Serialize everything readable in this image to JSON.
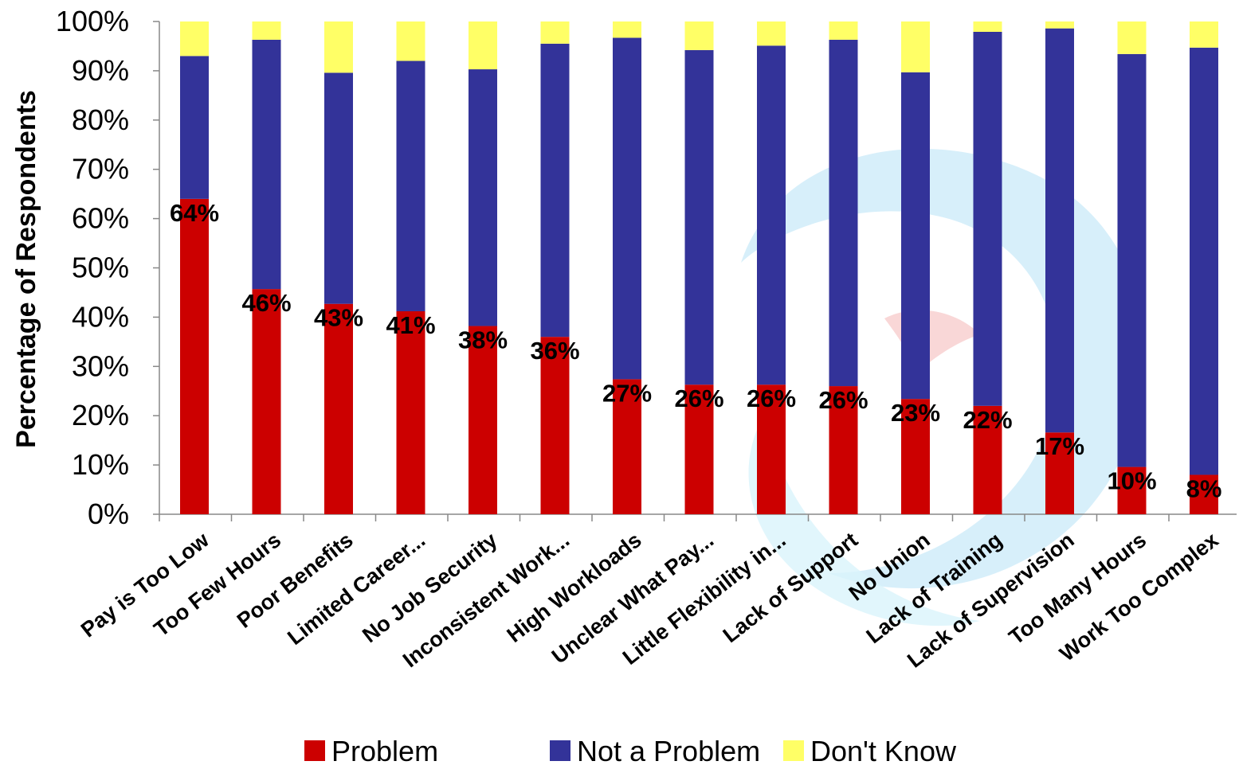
{
  "chart_data": {
    "type": "bar",
    "stacked": true,
    "ylabel": "Percentage of Respondents",
    "xlabel": "",
    "ylim": [
      0,
      100
    ],
    "y_ticks": [
      "0%",
      "10%",
      "20%",
      "30%",
      "40%",
      "50%",
      "60%",
      "70%",
      "80%",
      "90%",
      "100%"
    ],
    "grid": false,
    "legend_position": "bottom",
    "categories": [
      "Pay is Too Low",
      "Too Few Hours",
      "Poor Benefits",
      "Limited Career...",
      "No Job Security",
      "Inconsistent Work...",
      "High Workloads",
      "Unclear What Pay...",
      "Little Flexibility in...",
      "Lack of Support",
      "No Union",
      "Lack of Training",
      "Lack of Supervision",
      "Too Many Hours",
      "Work Too Complex"
    ],
    "series": [
      {
        "name": "Problem",
        "color": "#cc0000",
        "values": [
          64,
          45.7,
          42.7,
          41.2,
          38.2,
          36,
          27.4,
          26.3,
          26.3,
          26,
          23.4,
          22,
          16.6,
          9.6,
          8
        ],
        "labels": [
          "64%",
          "46%",
          "43%",
          "41%",
          "38%",
          "36%",
          "27%",
          "26%",
          "26%",
          "26%",
          "23%",
          "22%",
          "17%",
          "10%",
          "8%"
        ]
      },
      {
        "name": "Not a Problem",
        "color": "#333399",
        "values": [
          29,
          50.6,
          46.9,
          50.8,
          52.1,
          59.5,
          69.3,
          67.9,
          68.8,
          70.3,
          66.3,
          75.9,
          82,
          83.8,
          86.7
        ]
      },
      {
        "name": "Don't Know",
        "color": "#ffff66",
        "values": [
          7,
          3.7,
          10.4,
          8,
          9.7,
          4.5,
          3.3,
          5.8,
          4.9,
          3.7,
          10.3,
          2.1,
          1.4,
          6.6,
          5.3
        ]
      }
    ]
  }
}
